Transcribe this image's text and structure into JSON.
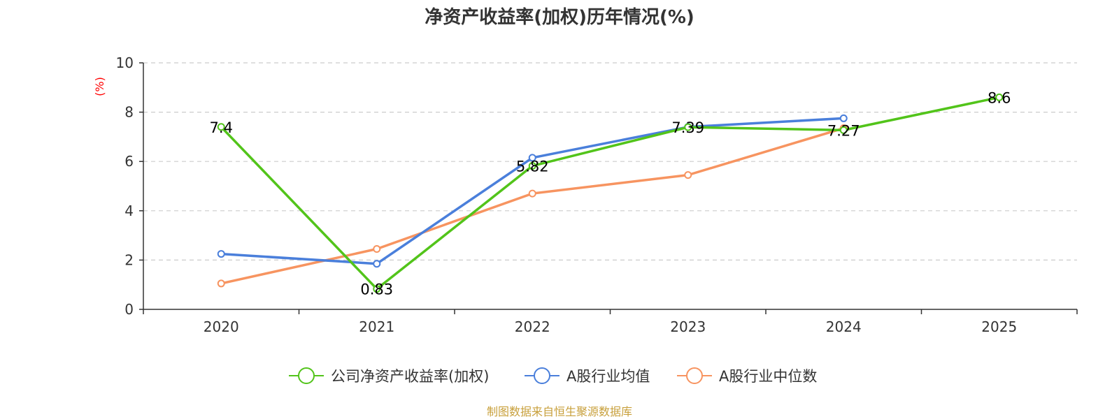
{
  "chart_data": {
    "type": "line",
    "title": "净资产收益率(加权)历年情况(%)",
    "ylabel": "(%)",
    "xlabel": "",
    "categories": [
      "2020",
      "2021",
      "2022",
      "2023",
      "2024",
      "2025"
    ],
    "ylim": [
      0,
      10
    ],
    "yticks": [
      0,
      2,
      4,
      6,
      8,
      10
    ],
    "grid": true,
    "legend_position": "bottom",
    "series": [
      {
        "name": "公司净资产收益率(加权)",
        "color": "#52c41a",
        "values": [
          7.4,
          0.83,
          5.82,
          7.39,
          7.27,
          8.6
        ],
        "labels": [
          "7.4",
          "0.83",
          "5.82",
          "7.39",
          "7.27",
          "8.6"
        ]
      },
      {
        "name": "A股行业均值",
        "color": "#4a7fdb",
        "values": [
          2.25,
          1.85,
          6.15,
          7.4,
          7.75,
          null
        ]
      },
      {
        "name": "A股行业中位数",
        "color": "#f79460",
        "values": [
          1.05,
          2.45,
          4.7,
          5.45,
          7.35,
          null
        ]
      }
    ],
    "source": "制图数据来自恒生聚源数据库",
    "source_color": "#c8a03c"
  }
}
